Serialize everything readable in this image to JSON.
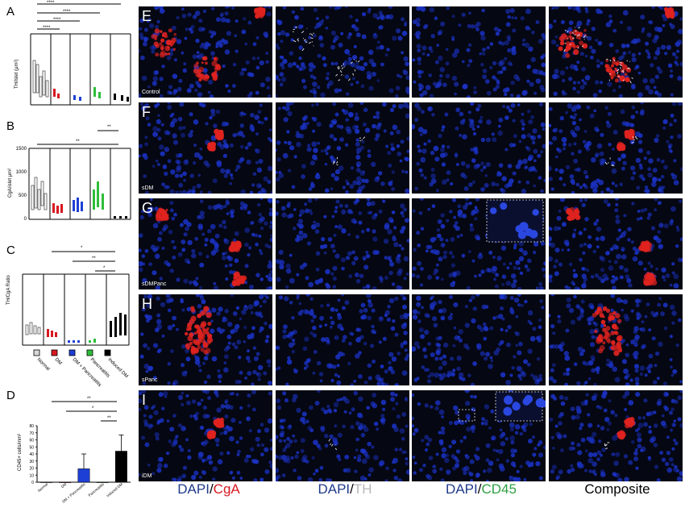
{
  "panels": {
    "A": {
      "label": "A",
      "ylabel": "TH/islet (μm²)",
      "sig": [
        "****",
        "****",
        "****",
        "****"
      ]
    },
    "B": {
      "label": "B",
      "ylabel": "CgA/islet μm²",
      "sig": [
        "**",
        "**"
      ],
      "ticks": [
        "0",
        "500",
        "1000",
        "1500"
      ]
    },
    "C": {
      "label": "C",
      "ylabel": "TH/CgA Ratio",
      "sig": [
        "*",
        "**",
        "*"
      ]
    },
    "D": {
      "label": "D",
      "ylabel": "CD45+ cells/mm²",
      "sig": [
        "**",
        "*",
        "**"
      ]
    }
  },
  "legend": [
    {
      "name": "Normal",
      "color": "#d9d9d9"
    },
    {
      "name": "DM",
      "color": "#d71920"
    },
    {
      "name": "DM + Pancreatitis",
      "color": "#1e3fd6"
    },
    {
      "name": "Pancreatitis",
      "color": "#2ebd3a"
    },
    {
      "name": "Induced DM",
      "color": "#000000"
    }
  ],
  "chart_data": {
    "type": "bar",
    "title": "",
    "xlabel": "",
    "ylabel": "CD45+ cells/mm²",
    "categories": [
      "Normal",
      "DM",
      "DM + Pancreatitis",
      "Pancreatitis",
      "Induced DM"
    ],
    "values": [
      0,
      0,
      19,
      0,
      44
    ],
    "error": [
      0,
      0,
      21,
      0,
      23
    ],
    "ylim": [
      0,
      80
    ],
    "yticks": [
      0,
      10,
      20,
      30,
      40,
      50,
      60,
      70,
      80
    ],
    "colors": [
      "#d9d9d9",
      "#d71920",
      "#1e3fd6",
      "#2ebd3a",
      "#000000"
    ]
  },
  "micro": {
    "rows": [
      {
        "letter": "E",
        "tag": "Control"
      },
      {
        "letter": "F",
        "tag": "sDM"
      },
      {
        "letter": "G",
        "tag": "sDMPanc"
      },
      {
        "letter": "H",
        "tag": "sPanc"
      },
      {
        "letter": "I",
        "tag": "iDM"
      }
    ],
    "captions": [
      {
        "dapi": "DAPI",
        "sep": "/",
        "marker": "CgA"
      },
      {
        "dapi": "DAPI",
        "sep": "/",
        "marker": "TH"
      },
      {
        "dapi": "DAPI",
        "sep": "/",
        "marker": "CD45"
      },
      {
        "composite": "Composite"
      }
    ]
  }
}
